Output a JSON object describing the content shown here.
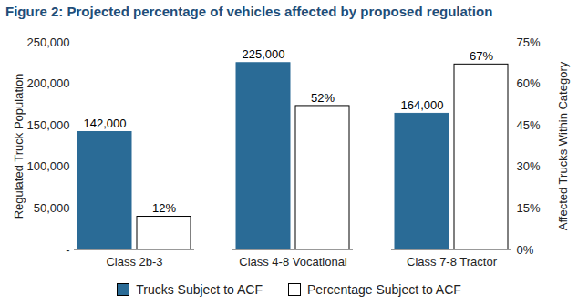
{
  "chart_data": {
    "type": "bar",
    "title": "Figure 2: Projected percentage of vehicles affected by proposed regulation",
    "categories": [
      "Class 2b-3",
      "Class 4-8 Vocational",
      "Class 7-8 Tractor"
    ],
    "series": [
      {
        "name": "Trucks Subject to ACF",
        "color": "#2a6b96",
        "values": [
          142000,
          225000,
          164000
        ],
        "value_labels": [
          "142,000",
          "225,000",
          "164,000"
        ]
      },
      {
        "name": "Percentage Subject to ACF",
        "color": "#ffffff",
        "axis": "y2",
        "values": [
          12,
          52,
          67
        ],
        "value_labels": [
          "12%",
          "52%",
          "67%"
        ]
      }
    ],
    "ylabel": "Regulated Truck Population",
    "y2label": "Affected Trucks Within Category",
    "ylim": [
      0,
      250000
    ],
    "yticks": [
      {
        "value": 0,
        "label": "-"
      },
      {
        "value": 50000,
        "label": "50,000"
      },
      {
        "value": 100000,
        "label": "100,000"
      },
      {
        "value": 150000,
        "label": "150,000"
      },
      {
        "value": 200000,
        "label": "200,000"
      },
      {
        "value": 250000,
        "label": "250,000"
      }
    ],
    "y2lim": [
      0,
      75
    ],
    "y2ticks": [
      {
        "value": 0,
        "label": "0%"
      },
      {
        "value": 15,
        "label": "15%"
      },
      {
        "value": 30,
        "label": "30%"
      },
      {
        "value": 45,
        "label": "45%"
      },
      {
        "value": 60,
        "label": "60%"
      },
      {
        "value": 75,
        "label": "75%"
      }
    ],
    "data_labels": true,
    "grid": false,
    "legend": "bottom"
  }
}
